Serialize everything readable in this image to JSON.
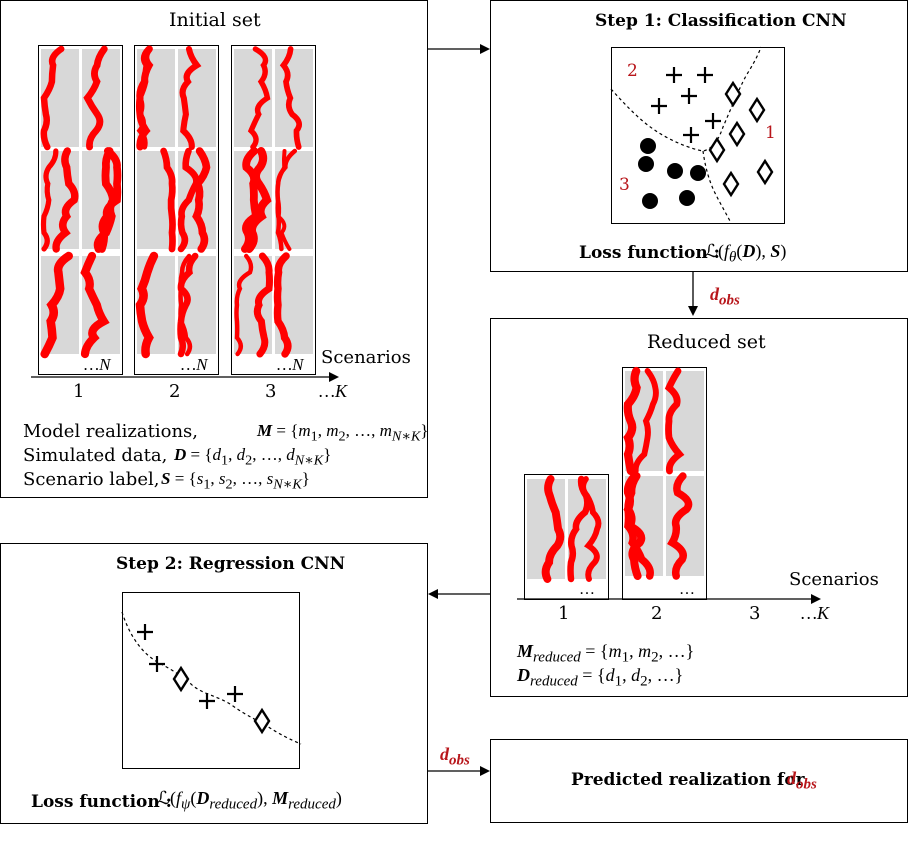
{
  "initial_set": {
    "title": "Initial set",
    "scenario_axis_label": "Scenarios",
    "scenarios": [
      "1",
      "2",
      "3"
    ],
    "axis_end": "…K",
    "column_end": "…N",
    "model_realizations": "Model realizations,",
    "model_eq": "M = {m1, m2, …, mN∗K}",
    "simulated_data": "Simulated data,",
    "simulated_eq": "D = {d1, d2, …, dN∗K}",
    "scenario_label": "Scenario label,",
    "scenario_eq": "S = {s1, s2, …, sN∗K}"
  },
  "step1": {
    "title": "Step 1: Classification CNN",
    "loss_label": "Loss function :",
    "loss_expr": "ℒ(fθ(D), S)",
    "class_labels": [
      "2",
      "1",
      "3"
    ]
  },
  "dobs_label": "dobs",
  "reduced_set": {
    "title": "Reduced set",
    "scenario_axis_label": "Scenarios",
    "scenarios": [
      "1",
      "2",
      "3"
    ],
    "axis_end": "…K",
    "column_end": "…",
    "m_reduced_eq": "Mreduced = {m1, m2, …}",
    "d_reduced_eq": "Dreduced = {d1, d2, …}"
  },
  "step2": {
    "title": "Step 2: Regression CNN",
    "loss_label": "Loss function :",
    "loss_expr": "ℒ(fψ(Dreduced), Mreduced)"
  },
  "predicted": {
    "label": "Predicted realization for",
    "dobs": "dobs"
  },
  "colors": {
    "accent": "#b8161b",
    "channel": "#ff0000",
    "tile": "#d8d8d8"
  }
}
